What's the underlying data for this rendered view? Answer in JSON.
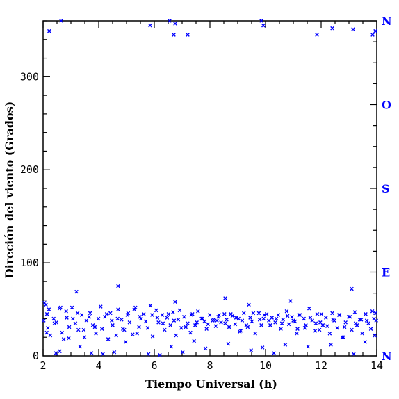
{
  "chart_data": {
    "type": "scatter",
    "xlabel": "Tiempo Universal (h)",
    "ylabel": "Direción del viento (Grados)",
    "xlim": [
      2,
      14
    ],
    "ylim": [
      0,
      360
    ],
    "x_ticks": [
      2,
      4,
      6,
      8,
      10,
      12,
      14
    ],
    "x_tick_labels": [
      "2",
      "4",
      "6",
      "8",
      "10",
      "12",
      "14"
    ],
    "y_ticks": [
      0,
      100,
      200,
      300
    ],
    "y_tick_labels": [
      "0",
      "100",
      "200",
      "300"
    ],
    "compass_ticks": [
      0,
      90,
      180,
      270,
      360
    ],
    "compass_labels": [
      "N",
      "E",
      "S",
      "O",
      "N"
    ],
    "marker": "x",
    "marker_color": "#0000ff",
    "frame_color": "#000000",
    "grid": false,
    "points_x": [
      2.02,
      2.1,
      2.14,
      2.17,
      2.26,
      2.38,
      2.48,
      2.59,
      2.68,
      2.74,
      2.85,
      2.94,
      3.04,
      3.16,
      3.27,
      3.39,
      3.49,
      3.56,
      3.69,
      3.79,
      3.9,
      3.99,
      4.12,
      4.22,
      4.34,
      4.42,
      4.5,
      4.63,
      4.7,
      4.82,
      4.92,
      5.03,
      5.11,
      5.22,
      5.32,
      5.45,
      5.52,
      5.62,
      5.76,
      5.86,
      5.94,
      6.07,
      6.15,
      6.29,
      6.37,
      6.46,
      6.58,
      6.67,
      6.78,
      6.86,
      6.97,
      7.07,
      7.2,
      7.3,
      7.37,
      7.47,
      7.57,
      7.7,
      7.8,
      7.88,
      7.99,
      8.1,
      8.21,
      8.3,
      8.4,
      8.52,
      8.6,
      8.69,
      8.81,
      8.91,
      9.03,
      9.11,
      9.22,
      9.31,
      9.45,
      9.51,
      9.63,
      9.76,
      9.85,
      9.93,
      10.04,
      10.12,
      10.23,
      10.35,
      10.46,
      10.55,
      10.63,
      10.76,
      10.84,
      10.95,
      11.06,
      11.15,
      11.24,
      11.38,
      11.45,
      11.57,
      11.68,
      11.79,
      11.86,
      11.97,
      12.06,
      12.17,
      12.31,
      12.4,
      12.47,
      12.58,
      12.67,
      12.8,
      12.88,
      12.99,
      13.1,
      13.21,
      13.29,
      13.39,
      13.48,
      13.6,
      13.7,
      13.79,
      13.9,
      13.98,
      2.05,
      2.21,
      2.41,
      2.63,
      2.83,
      3.07,
      3.24,
      3.46,
      3.66,
      3.86,
      4.07,
      4.29,
      4.47,
      4.68,
      4.87,
      5.06,
      5.28,
      5.48,
      5.69,
      5.92,
      6.11,
      6.31,
      6.51,
      6.71,
      6.91,
      7.13,
      7.33,
      7.53,
      7.73,
      7.93,
      8.13,
      8.33,
      8.55,
      8.75,
      8.94,
      9.16,
      9.36,
      9.56,
      9.79,
      9.96,
      10.17,
      10.39,
      10.59,
      10.79,
      11.0,
      11.2,
      11.41,
      11.61,
      11.81,
      12.01,
      12.22,
      12.43,
      12.64,
      12.84,
      13.04,
      13.24,
      13.44,
      13.64,
      13.84,
      13.95,
      2.13,
      2.46,
      2.92,
      3.33,
      3.74,
      4.15,
      4.56,
      4.97,
      5.38,
      5.79,
      6.2,
      6.61,
      7.02,
      7.43,
      7.84,
      8.25,
      8.66,
      9.07,
      9.48,
      9.89,
      10.3,
      10.71,
      11.12,
      11.53,
      11.94,
      12.35,
      12.76,
      13.17,
      13.58,
      13.93,
      3.2,
      4.7,
      6.75,
      8.55,
      9.4,
      10.9,
      13.1,
      2.22,
      2.6,
      2.65,
      5.85,
      6.55,
      6.7,
      6.75,
      7.2,
      9.85,
      9.92,
      11.85,
      12.4,
      13.15,
      13.85,
      13.95
    ],
    "points_y": [
      38,
      55,
      45,
      30,
      22,
      40,
      36,
      51,
      25,
      18,
      41,
      31,
      52,
      35,
      28,
      44,
      20,
      38,
      46,
      33,
      24,
      40,
      29,
      42,
      18,
      46,
      33,
      22,
      50,
      39,
      28,
      44,
      36,
      23,
      52,
      31,
      40,
      45,
      30,
      54,
      21,
      49,
      36,
      44,
      28,
      41,
      33,
      47,
      22,
      39,
      30,
      42,
      35,
      25,
      45,
      33,
      48,
      40,
      37,
      29,
      44,
      38,
      32,
      42,
      36,
      45,
      39,
      31,
      43,
      34,
      40,
      27,
      46,
      33,
      41,
      37,
      24,
      46,
      33,
      40,
      45,
      38,
      41,
      36,
      44,
      29,
      39,
      48,
      34,
      42,
      37,
      29,
      44,
      40,
      33,
      51,
      38,
      27,
      45,
      36,
      33,
      41,
      24,
      46,
      38,
      30,
      44,
      20,
      36,
      42,
      28,
      47,
      33,
      39,
      24,
      45,
      35,
      29,
      40,
      38,
      57,
      50,
      35,
      52,
      48,
      40,
      46,
      28,
      42,
      31,
      53,
      45,
      38,
      40,
      29,
      46,
      50,
      42,
      37,
      44,
      41,
      35,
      45,
      38,
      49,
      31,
      44,
      36,
      40,
      34,
      39,
      44,
      35,
      45,
      41,
      38,
      31,
      46,
      39,
      44,
      33,
      40,
      35,
      43,
      38,
      44,
      30,
      41,
      35,
      45,
      32,
      39,
      44,
      31,
      42,
      35,
      39,
      38,
      48,
      46,
      25,
      3,
      19,
      10,
      3,
      2,
      4,
      15,
      24,
      2,
      1,
      10,
      4,
      16,
      8,
      38,
      13,
      26,
      6,
      9,
      3,
      12,
      24,
      10,
      28,
      12,
      20,
      2,
      15,
      22,
      69,
      75,
      58,
      62,
      55,
      59,
      72,
      349,
      5,
      360,
      355,
      360,
      345,
      357,
      345,
      360,
      355,
      345,
      352,
      351,
      345,
      349
    ]
  }
}
